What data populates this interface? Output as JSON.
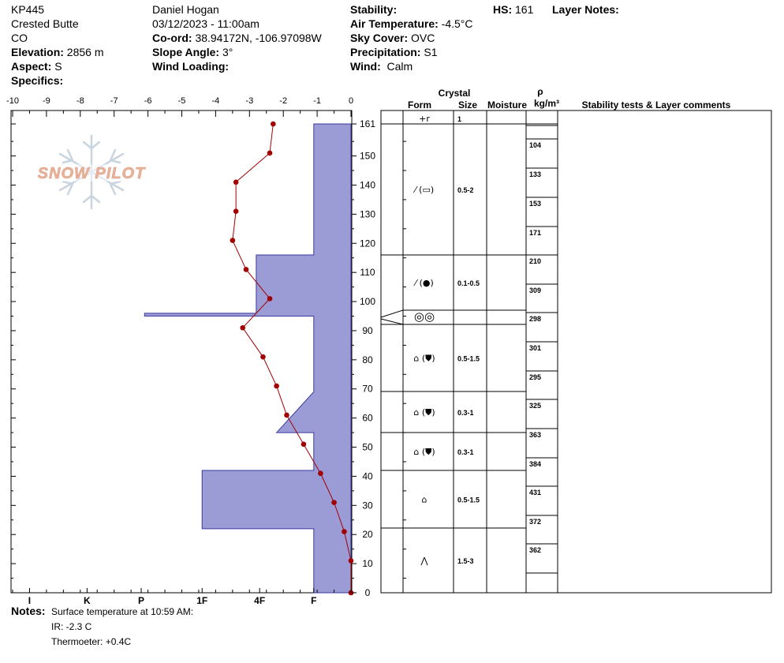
{
  "header": {
    "pit_id": "KP445",
    "location": "Crested Butte",
    "state": "CO",
    "elevation_label": "Elevation:",
    "elevation": "2856 m",
    "aspect_label": "Aspect:",
    "aspect": "S",
    "specifics_label": "Specifics:",
    "observer": "Daniel Hogan",
    "datetime": "03/12/2023 - 11:00am",
    "coord_label": "Co-ord:",
    "coord": "38.94172N, -106.97098W",
    "slope_label": "Slope Angle:",
    "slope": "3°",
    "wind_loading_label": "Wind Loading:",
    "stability_label": "Stability:",
    "air_temp_label": "Air Temperature:",
    "air_temp": "-4.5°C",
    "sky_label": "Sky Cover:",
    "sky": "OVC",
    "precip_label": "Precipitation:",
    "precip": "S1",
    "wind_label": "Wind:",
    "wind": "Calm",
    "hs_label": "HS:",
    "hs": "161",
    "layer_notes_label": "Layer Notes:"
  },
  "logo_text": "SNOW PILOT",
  "notes": {
    "label": "Notes:",
    "lines": [
      "Surface temperature at 10:59 AM:",
      "IR: -2.3 C",
      "Thermoeter: +0.4C"
    ]
  },
  "table_headers": {
    "crystal": "Crystal",
    "form": "Form",
    "size": "Size",
    "moisture": "Moisture",
    "rho": "ρ",
    "rho_unit": "kg/m³",
    "stability": "Stability tests & Layer comments"
  },
  "colors": {
    "hardness_fill": "#9b9bd6",
    "hardness_stroke": "#3a3aa0",
    "temperature": "#a00000",
    "logo": "#e9b39a"
  },
  "chart_data": {
    "type": "snow-profile",
    "temperature_axis": {
      "ticks": [
        -10,
        -9,
        -8,
        -7,
        -6,
        -5,
        -4,
        -3,
        -2,
        -1,
        0
      ],
      "range": [
        -10,
        0
      ]
    },
    "height_axis": {
      "ticks": [
        0,
        10,
        20,
        30,
        40,
        50,
        60,
        70,
        80,
        90,
        100,
        110,
        120,
        130,
        140,
        150,
        161
      ],
      "range": [
        0,
        161
      ]
    },
    "hardness_axis": {
      "labels": [
        "I",
        "K",
        "P",
        "1F",
        "4F",
        "F"
      ],
      "label_temps": [
        -9.5,
        -7.8,
        -6.2,
        -4.4,
        -2.7,
        -1.1
      ]
    },
    "hardness_profile": [
      [
        0,
        -1.1
      ],
      [
        22,
        -1.1
      ],
      [
        22,
        -4.4
      ],
      [
        42,
        -4.4
      ],
      [
        42,
        -1.1
      ],
      [
        55,
        -1.1
      ],
      [
        55,
        -2.2
      ],
      [
        69,
        -1.1
      ],
      [
        95,
        -1.1
      ],
      [
        95,
        -6.1
      ],
      [
        96,
        -6.1
      ],
      [
        96,
        -2.8
      ],
      [
        116,
        -2.8
      ],
      [
        116,
        -1.1
      ],
      [
        161,
        -1.1
      ]
    ],
    "temperature_profile": [
      {
        "height": 161,
        "temp": -2.3
      },
      {
        "height": 151,
        "temp": -2.4
      },
      {
        "height": 141,
        "temp": -3.4
      },
      {
        "height": 131,
        "temp": -3.4
      },
      {
        "height": 121,
        "temp": -3.5
      },
      {
        "height": 111,
        "temp": -3.1
      },
      {
        "height": 101,
        "temp": -2.4
      },
      {
        "height": 91,
        "temp": -3.2
      },
      {
        "height": 81,
        "temp": -2.6
      },
      {
        "height": 71,
        "temp": -2.2
      },
      {
        "height": 61,
        "temp": -1.9
      },
      {
        "height": 51,
        "temp": -1.4
      },
      {
        "height": 41,
        "temp": -0.9
      },
      {
        "height": 31,
        "temp": -0.5
      },
      {
        "height": 21,
        "temp": -0.2
      },
      {
        "height": 11,
        "temp": 0.0
      },
      {
        "height": 0,
        "temp": 0.0
      }
    ],
    "layers": [
      {
        "top": 161,
        "bottom": 161,
        "form": "+r",
        "size": "1"
      },
      {
        "top": 161,
        "bottom": 116,
        "form": "⁄ (▭)",
        "size": "0.5-2"
      },
      {
        "top": 116,
        "bottom": 97,
        "form": "⁄ (●)",
        "size": "0.1-0.5"
      },
      {
        "top": 97,
        "bottom": 92,
        "form": "◎◎",
        "size": ""
      },
      {
        "top": 92,
        "bottom": 69,
        "form": "⌂ (⛊)",
        "size": "0.5-1.5"
      },
      {
        "top": 69,
        "bottom": 55,
        "form": "⌂ (⛊)",
        "size": "0.3-1"
      },
      {
        "top": 55,
        "bottom": 42,
        "form": "⌂ (⛊)",
        "size": "0.3-1"
      },
      {
        "top": 42,
        "bottom": 22,
        "form": "⌂",
        "size": "0.5-1.5"
      },
      {
        "top": 22,
        "bottom": 0,
        "form": "⋀",
        "size": "1.5-3"
      }
    ],
    "densities": [
      {
        "top": 161,
        "bottom": 151,
        "value": "104"
      },
      {
        "top": 151,
        "bottom": 141,
        "value": "133"
      },
      {
        "top": 141,
        "bottom": 131,
        "value": "153"
      },
      {
        "top": 131,
        "bottom": 116,
        "value": "171"
      },
      {
        "top": 116,
        "bottom": 106,
        "value": "210"
      },
      {
        "top": 106,
        "bottom": 96,
        "value": "309"
      },
      {
        "top": 96,
        "bottom": 86,
        "value": "298"
      },
      {
        "top": 86,
        "bottom": 76,
        "value": "301"
      },
      {
        "top": 76,
        "bottom": 66,
        "value": "295"
      },
      {
        "top": 66,
        "bottom": 56,
        "value": "325"
      },
      {
        "top": 56,
        "bottom": 46,
        "value": "363"
      },
      {
        "top": 46,
        "bottom": 36,
        "value": "384"
      },
      {
        "top": 36,
        "bottom": 26,
        "value": "431"
      },
      {
        "top": 26,
        "bottom": 16,
        "value": "372"
      },
      {
        "top": 16,
        "bottom": 6,
        "value": "362"
      }
    ]
  }
}
